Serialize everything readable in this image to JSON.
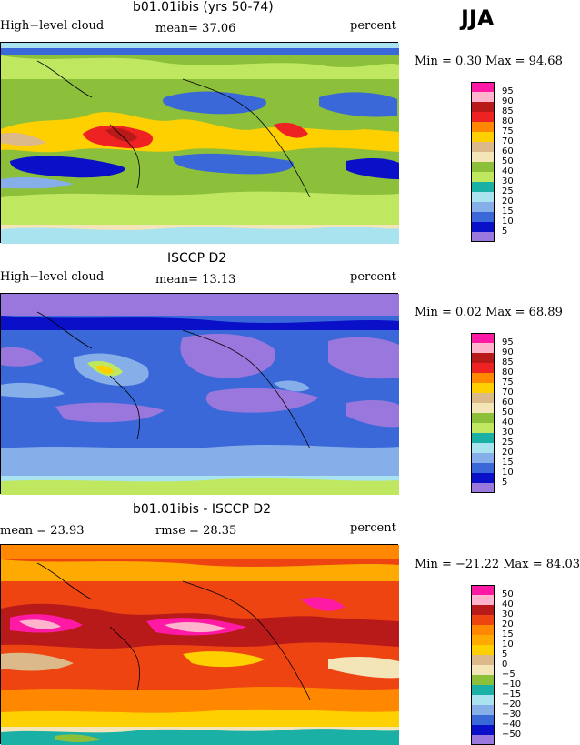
{
  "season": "JJA",
  "panels": [
    {
      "title": "b01.01ibis (yrs 50-74)",
      "left_label": "High−level cloud",
      "center_label": "mean=  37.06",
      "right_label": "percent",
      "minmax": "Min =    0.30 Max =   94.68",
      "colorbar": {
        "levels": [
          "95",
          "90",
          "85",
          "80",
          "75",
          "70",
          "60",
          "50",
          "40",
          "30",
          "25",
          "20",
          "15",
          "10",
          "5"
        ],
        "colors": [
          "#ff1aa6",
          "#ffb3cc",
          "#b81a1a",
          "#ee2222",
          "#ff8800",
          "#ffd000",
          "#dbb98a",
          "#f3e5b8",
          "#8cbf3a",
          "#bfe860",
          "#1ab0a6",
          "#a9e3ef",
          "#86aee8",
          "#3a68d8",
          "#0a10c8",
          "#9977dd"
        ]
      }
    },
    {
      "title": "ISCCP D2",
      "left_label": "High−level cloud",
      "center_label": "mean=  13.13",
      "right_label": "percent",
      "minmax": "Min =    0.02 Max =   68.89",
      "colorbar": {
        "levels": [
          "95",
          "90",
          "85",
          "80",
          "75",
          "70",
          "60",
          "50",
          "40",
          "30",
          "25",
          "20",
          "15",
          "10",
          "5"
        ],
        "colors": [
          "#ff1aa6",
          "#ffb3cc",
          "#b81a1a",
          "#ee2222",
          "#ff8800",
          "#ffd000",
          "#dbb98a",
          "#f3e5b8",
          "#8cbf3a",
          "#bfe860",
          "#1ab0a6",
          "#a9e3ef",
          "#86aee8",
          "#3a68d8",
          "#0a10c8",
          "#9977dd"
        ]
      }
    },
    {
      "title": "b01.01ibis - ISCCP D2",
      "left_label": "mean =   23.93",
      "center_label": "rmse =   28.35",
      "right_label": "percent",
      "minmax": "Min = −21.22 Max =   84.03",
      "colorbar": {
        "levels": [
          "50",
          "40",
          "30",
          "20",
          "15",
          "10",
          "5",
          "0",
          "−5",
          "−10",
          "−15",
          "−20",
          "−30",
          "−40",
          "−50"
        ],
        "colors": [
          "#ff1aa6",
          "#ffb3cc",
          "#b81a1a",
          "#ee4411",
          "#ff8800",
          "#ffaa00",
          "#ffd000",
          "#dbb98a",
          "#f3e5b8",
          "#8cbf3a",
          "#1ab0a6",
          "#a9e3ef",
          "#86aee8",
          "#3a68d8",
          "#0a10c8",
          "#9977dd"
        ]
      }
    }
  ]
}
